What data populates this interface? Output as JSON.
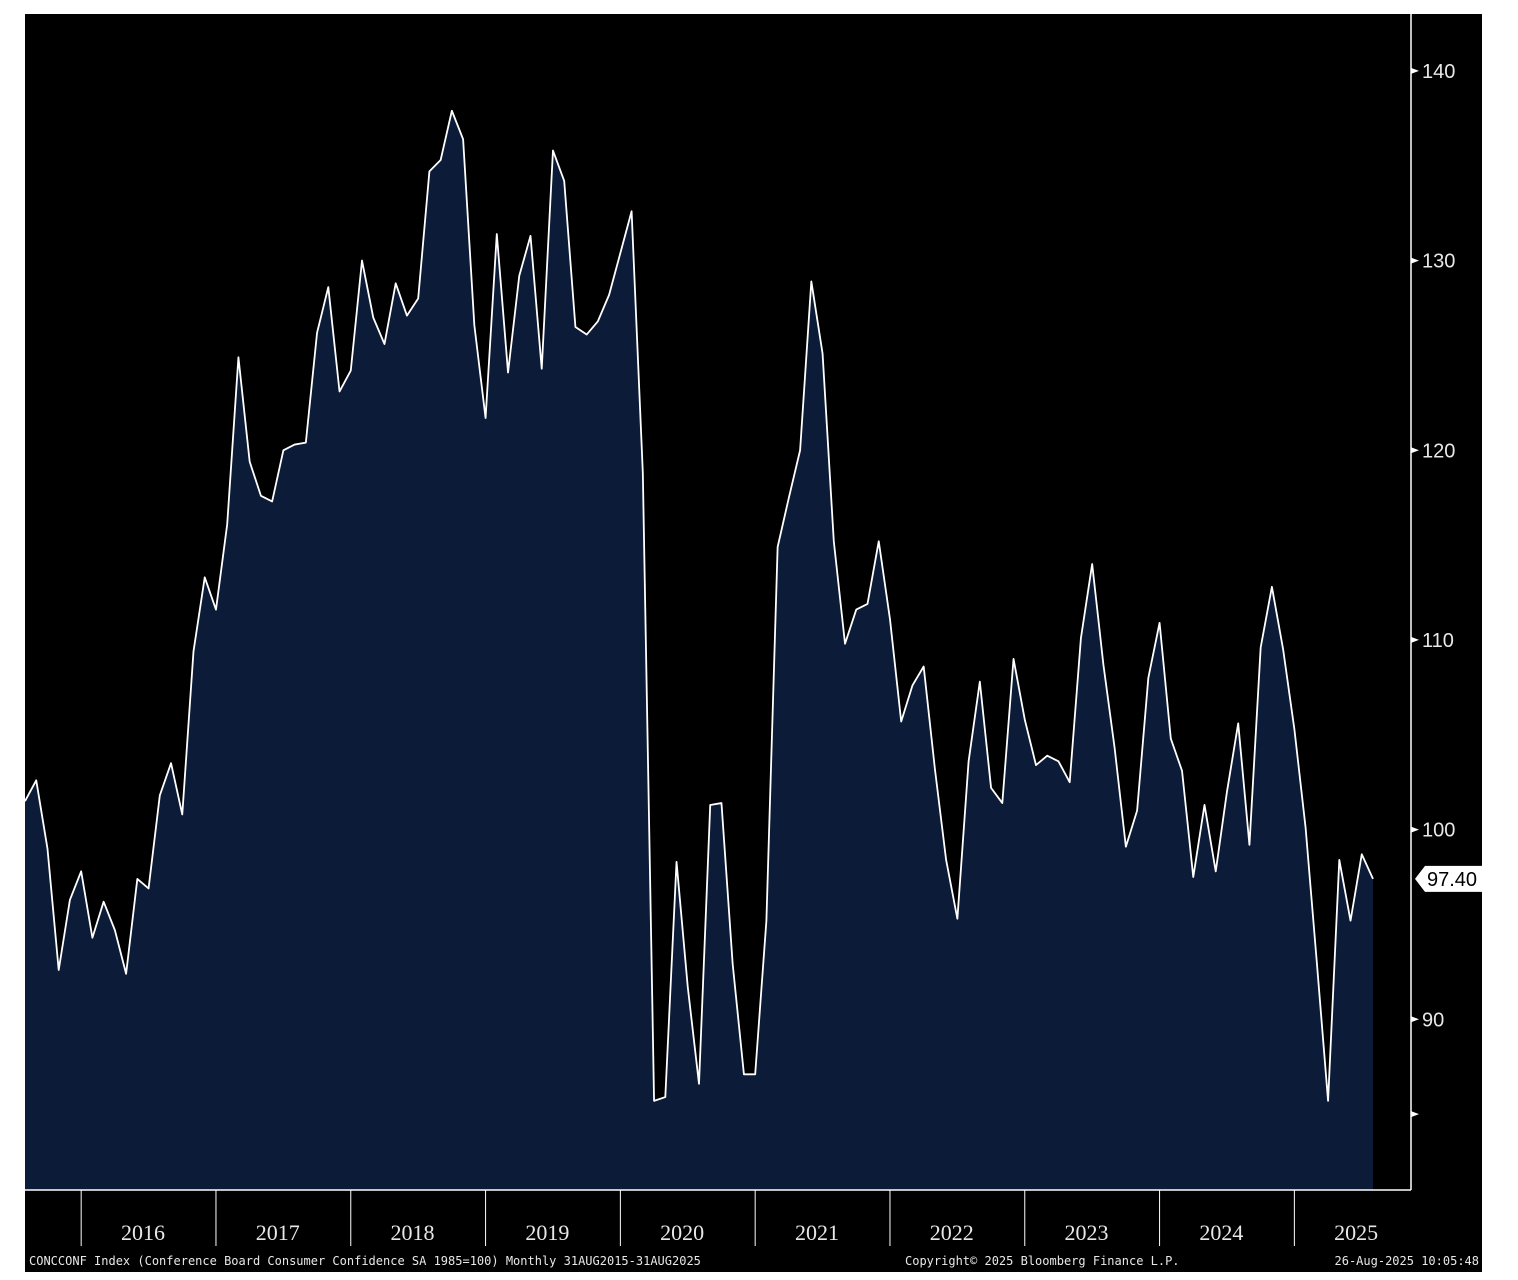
{
  "footer": {
    "description": "CONCCONF Index (Conference Board Consumer Confidence SA 1985=100)  Monthly 31AUG2015-31AUG2025",
    "copyright": "Copyright© 2025 Bloomberg Finance L.P.",
    "timestamp": "26-Aug-2025 10:05:48"
  },
  "colors": {
    "background": "#000000",
    "area_fill": "#0c1c38",
    "line": "#ffffff",
    "text": "#e8e8e8"
  },
  "last_value_label": "97.40",
  "chart_data": {
    "type": "area",
    "x_start": "2015-08",
    "x_end": "2025-08",
    "frequency": "monthly",
    "ylim": [
      81,
      143
    ],
    "y_ticks": [
      90,
      100,
      110,
      120,
      130,
      140
    ],
    "y_ticks_unlabeled": [
      85
    ],
    "x_tick_labels": [
      "2016",
      "2017",
      "2018",
      "2019",
      "2020",
      "2021",
      "2022",
      "2023",
      "2024",
      "2025"
    ],
    "y_axis_position": "right",
    "grid": false,
    "legend": "none",
    "series": [
      {
        "values": [
          101.5,
          102.6,
          99.0,
          92.6,
          96.3,
          97.8,
          94.3,
          96.2,
          94.7,
          92.4,
          97.4,
          96.9,
          101.8,
          103.5,
          100.8,
          109.4,
          113.3,
          111.6,
          116.1,
          124.9,
          119.4,
          117.6,
          117.3,
          120.0,
          120.3,
          120.4,
          126.2,
          128.6,
          123.1,
          124.2,
          130.0,
          127.0,
          125.6,
          128.8,
          127.1,
          128.0,
          134.7,
          135.3,
          137.9,
          136.4,
          126.6,
          121.7,
          131.4,
          124.1,
          129.2,
          131.3,
          124.3,
          135.8,
          134.2,
          126.5,
          126.1,
          126.8,
          128.2,
          130.4,
          132.6,
          118.8,
          85.7,
          85.9,
          98.3,
          91.7,
          86.6,
          101.3,
          101.4,
          92.9,
          87.1,
          87.1,
          95.2,
          114.9,
          117.5,
          120.0,
          128.9,
          125.1,
          115.2,
          109.8,
          111.6,
          111.9,
          115.2,
          111.1,
          105.7,
          107.6,
          108.6,
          103.2,
          98.4,
          95.3,
          103.6,
          107.8,
          102.2,
          101.4,
          109.0,
          105.8,
          103.4,
          103.9,
          103.6,
          102.5,
          110.1,
          114.0,
          108.7,
          104.3,
          99.1,
          101.0,
          108.0,
          110.9,
          104.8,
          103.1,
          97.5,
          101.3,
          97.8,
          102.0,
          105.6,
          99.2,
          109.6,
          112.8,
          109.5,
          105.3,
          100.1,
          93.0,
          85.7,
          98.4,
          95.2,
          98.7,
          97.4
        ]
      }
    ]
  }
}
